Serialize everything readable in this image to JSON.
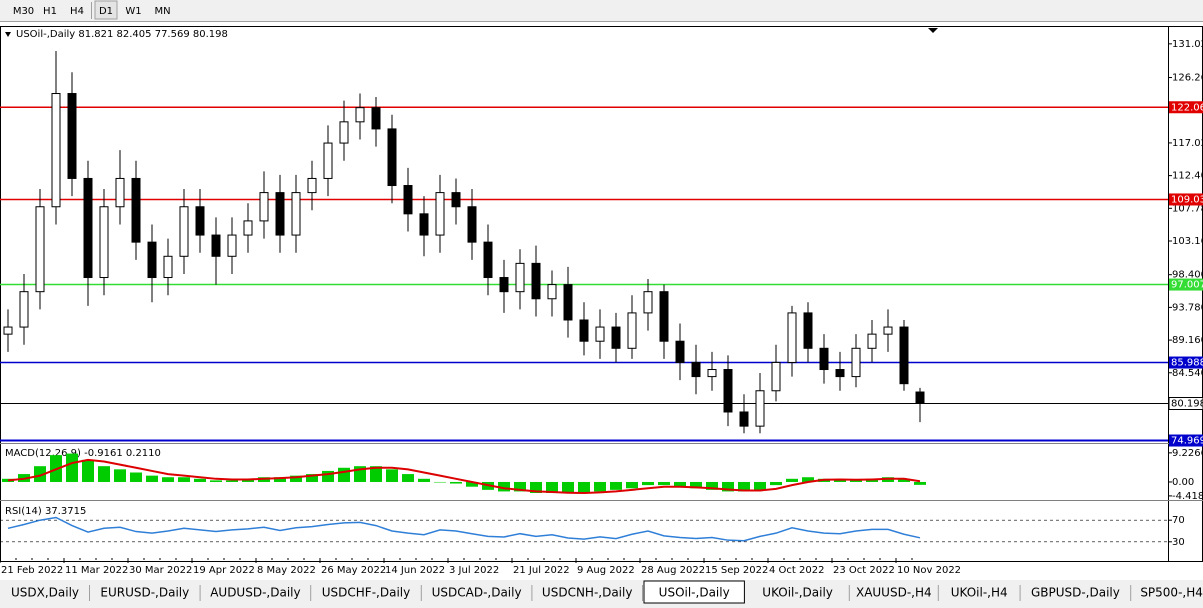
{
  "ui": {
    "timeframes": [
      "M30",
      "H1",
      "H4",
      "D1",
      "W1",
      "MN"
    ],
    "tabs": [
      "USDX,Daily",
      "EURUSD-,Daily",
      "AUDUSD-,Daily",
      "USDCHF-,Daily",
      "USDCAD-,Daily",
      "USDCNH-,Daily",
      "USOil-,Daily",
      "UKOil-,Daily",
      "XAUUSD-,H4",
      "UKOil-,H4",
      "GBPUSD-,Daily",
      "SP500-,H4"
    ],
    "active_tab": 6
  },
  "chart_data": [
    {
      "type": "candlestick",
      "title": "USOil-,Daily  81.821 82.405 77.569 80.198",
      "categories": [
        "21 Feb 2022",
        null,
        null,
        null,
        "11 Mar 2022",
        null,
        null,
        null,
        "30 Mar 2022",
        null,
        null,
        null,
        "19 Apr 2022",
        null,
        null,
        null,
        "8 May 2022",
        null,
        null,
        null,
        "26 May 2022",
        null,
        null,
        null,
        "14 Jun 2022",
        null,
        null,
        null,
        "3 Jul 2022",
        null,
        null,
        null,
        "21 Jul 2022",
        null,
        null,
        null,
        "9 Aug 2022",
        null,
        null,
        null,
        "28 Aug 2022",
        null,
        null,
        null,
        "15 Sep 2022",
        null,
        null,
        null,
        "4 Oct 2022",
        null,
        null,
        null,
        "23 Oct 2022",
        null,
        null,
        null,
        "10 Nov 2022",
        null
      ],
      "open": [
        90,
        91,
        96,
        108,
        124,
        112,
        98,
        108,
        112,
        103,
        98,
        101,
        108,
        104,
        101,
        104,
        106,
        110,
        104,
        110,
        112,
        117,
        120,
        122,
        119,
        111,
        107,
        104,
        110,
        108,
        103,
        98,
        96,
        100,
        95,
        97,
        92,
        89,
        91,
        88,
        93,
        96,
        89,
        86,
        84,
        85,
        79,
        77,
        82,
        86,
        93,
        88,
        85,
        84,
        88,
        90,
        91,
        81.821
      ],
      "high": [
        93.5,
        98.5,
        110.5,
        130,
        127,
        114.5,
        110.5,
        116,
        114.5,
        105.5,
        103.5,
        110.5,
        110.5,
        106.5,
        106.5,
        108.5,
        113,
        112.5,
        112.5,
        114.5,
        119.5,
        123,
        124,
        123.5,
        121,
        113.5,
        109.5,
        112.5,
        112,
        110.5,
        105.5,
        100.5,
        102,
        102.5,
        99,
        99.5,
        94.5,
        93.5,
        93,
        95.5,
        97.8,
        97,
        91.5,
        88.5,
        87.5,
        87,
        81.5,
        84.5,
        88.5,
        94,
        94.5,
        90,
        87.5,
        90,
        92,
        93.5,
        92,
        82.405
      ],
      "low": [
        87.5,
        88.5,
        93.5,
        105.5,
        109.5,
        94,
        95.5,
        105.5,
        100.5,
        94.5,
        95.5,
        98.5,
        101.5,
        97,
        98.5,
        101.5,
        103.5,
        101.5,
        101.5,
        107.5,
        109.5,
        114.5,
        117.5,
        116.5,
        108.5,
        104.5,
        101,
        101.5,
        105.5,
        100.5,
        95.5,
        93,
        93.5,
        92.5,
        92.5,
        89.5,
        87,
        86.5,
        86,
        86.5,
        90.5,
        86.5,
        83.5,
        81.5,
        82,
        77,
        76,
        76,
        80.5,
        84,
        86,
        83,
        82,
        82.5,
        86,
        87.5,
        82,
        77.569
      ],
      "close": [
        91,
        96,
        108,
        124,
        112,
        98,
        108,
        112,
        103,
        98,
        101,
        108,
        104,
        101,
        104,
        106,
        110,
        104,
        110,
        112,
        117,
        120,
        122,
        119,
        111,
        107,
        104,
        110,
        108,
        103,
        98,
        96,
        100,
        95,
        97,
        92,
        89,
        91,
        88,
        93,
        96,
        89,
        86,
        84,
        85,
        79,
        77,
        82,
        86,
        93,
        88,
        85,
        84,
        88,
        90,
        91,
        83,
        80.198
      ],
      "ylim": [
        74.9,
        133.4
      ],
      "yticks": [
        {
          "value": 131.02,
          "label": "131.020"
        },
        {
          "value": 126.26,
          "label": "126.260"
        },
        {
          "value": 117.02,
          "label": "117.020"
        },
        {
          "value": 112.4,
          "label": "112.400"
        },
        {
          "value": 107.78,
          "label": "107.780"
        },
        {
          "value": 103.16,
          "label": "103.160"
        },
        {
          "value": 98.4,
          "label": "98.400"
        },
        {
          "value": 93.78,
          "label": "93.780"
        },
        {
          "value": 89.16,
          "label": "89.160"
        },
        {
          "value": 84.54,
          "label": "84.540"
        }
      ],
      "levels": [
        {
          "value": 122.06,
          "label": "122.06",
          "color": "#e00000"
        },
        {
          "value": 109.03,
          "label": "109.03",
          "color": "#e00000"
        },
        {
          "value": 97.007,
          "label": "97.007",
          "color": "#33dd33"
        },
        {
          "value": 85.988,
          "label": "85.988",
          "color": "#0000cc"
        },
        {
          "value": 80.198,
          "label": "80.198",
          "color": "#000000"
        },
        {
          "value": 74.969,
          "label": "74.969",
          "color": "#0000cc"
        }
      ]
    },
    {
      "type": "bar",
      "title": "MACD(12,26,9) -0.9161 0.2110",
      "series": [
        {
          "color": "#00cc00",
          "mark": "bar",
          "values": [
            1,
            2.5,
            5,
            8.5,
            9,
            7,
            5,
            4,
            3,
            2,
            1.5,
            1.5,
            1,
            0.5,
            0.5,
            1,
            1.5,
            1.5,
            2,
            2.5,
            3.5,
            4.5,
            5,
            5,
            4,
            2.5,
            1,
            0,
            -0.5,
            -1.5,
            -2.5,
            -3,
            -3,
            -3.5,
            -3.5,
            -3.5,
            -3.5,
            -3,
            -2.5,
            -2,
            -1,
            -1,
            -1.5,
            -2,
            -2.5,
            -3,
            -3,
            -2.5,
            -1,
            1,
            1.5,
            1,
            0.5,
            0.5,
            1,
            1.5,
            1,
            -0.9161
          ]
        },
        {
          "color": "#dd0000",
          "mark": "line",
          "values": [
            0.5,
            1,
            2,
            4,
            6,
            7,
            6.5,
            5.5,
            4.5,
            3.5,
            2.5,
            2,
            1.5,
            1,
            0.8,
            0.8,
            1,
            1.2,
            1.5,
            2,
            2.5,
            3.2,
            4,
            4.5,
            4.5,
            4,
            3,
            2,
            1,
            0,
            -1,
            -2,
            -2.5,
            -3,
            -3.2,
            -3.4,
            -3.5,
            -3.3,
            -3,
            -2.5,
            -2,
            -1.5,
            -1.5,
            -1.7,
            -2,
            -2.4,
            -2.7,
            -2.7,
            -2.2,
            -1,
            0,
            0.7,
            0.8,
            0.7,
            0.8,
            1,
            1,
            0.211
          ]
        }
      ],
      "ylim": [
        -5.4,
        11.4
      ],
      "yticks": [
        9.2266,
        {
          "value": 0,
          "label": "0.00"
        },
        -4.4188
      ]
    },
    {
      "type": "line",
      "title": "RSI(14) 37.3715",
      "color": "#2f7fd8",
      "grid": true,
      "values": [
        55,
        62,
        70,
        75,
        60,
        48,
        55,
        57,
        49,
        46,
        50,
        55,
        52,
        49,
        52,
        54,
        57,
        51,
        56,
        58,
        62,
        65,
        66,
        60,
        50,
        46,
        43,
        52,
        50,
        45,
        40,
        39,
        45,
        40,
        43,
        37,
        35,
        39,
        36,
        44,
        50,
        41,
        38,
        36,
        38,
        33,
        32,
        40,
        46,
        56,
        50,
        46,
        45,
        50,
        53,
        53,
        44,
        37.3715
      ],
      "ylim": [
        0,
        100
      ],
      "yticks": [
        70,
        30
      ]
    }
  ]
}
